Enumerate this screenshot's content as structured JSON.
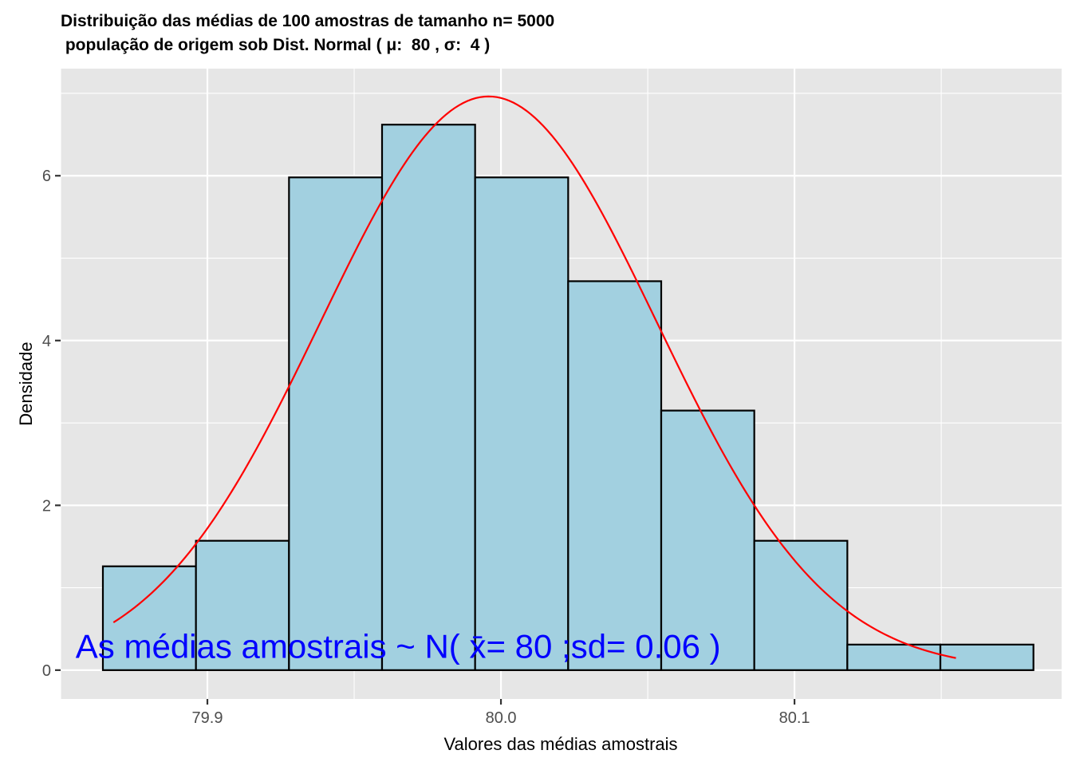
{
  "chart_data": {
    "type": "bar",
    "title_line1": "Distribuição das médias de 100 amostras de tamanho n= 5000",
    "title_line2": " população de origem sob Dist. Normal ( μ:  80 , σ:  4 )",
    "xlabel": "Valores das médias amostrais",
    "ylabel": "Densidade",
    "xlim": [
      79.85,
      80.191
    ],
    "ylim": [
      -0.35,
      7.3
    ],
    "x_ticks": [
      79.9,
      80.0,
      80.1
    ],
    "x_tick_labels": [
      "79.9",
      "80.0",
      "80.1"
    ],
    "y_ticks": [
      0,
      2,
      4,
      6
    ],
    "y_tick_labels": [
      "0",
      "2",
      "4",
      "6"
    ],
    "grid": true,
    "bins": [
      {
        "x0": 79.8644,
        "x1": 79.8961,
        "density": 1.26
      },
      {
        "x0": 79.8961,
        "x1": 79.9278,
        "density": 1.57
      },
      {
        "x0": 79.9278,
        "x1": 79.9595,
        "density": 5.98
      },
      {
        "x0": 79.9595,
        "x1": 79.9912,
        "density": 6.62
      },
      {
        "x0": 79.9912,
        "x1": 80.0229,
        "density": 5.98
      },
      {
        "x0": 80.0229,
        "x1": 80.0546,
        "density": 4.72
      },
      {
        "x0": 80.0546,
        "x1": 80.0863,
        "density": 3.15
      },
      {
        "x0": 80.0863,
        "x1": 80.118,
        "density": 1.57
      },
      {
        "x0": 80.118,
        "x1": 80.1497,
        "density": 0.31
      },
      {
        "x0": 80.1497,
        "x1": 80.1814,
        "density": 0.31
      }
    ],
    "normal_curve": {
      "mean": 79.9958,
      "sd": 0.0573,
      "x_from": 79.868,
      "x_to": 80.155
    },
    "annotation": {
      "text": "As médias amostrais ~ N( x̄= 80 ;sd= 0.06 )",
      "x": 79.965,
      "y": 0.15
    },
    "colors": {
      "bar_fill": "#a2d0e0",
      "bar_stroke": "#000000",
      "curve": "#ff0000",
      "annotation": "#0000ff",
      "panel": "#e6e6e6",
      "grid": "#ffffff"
    }
  }
}
